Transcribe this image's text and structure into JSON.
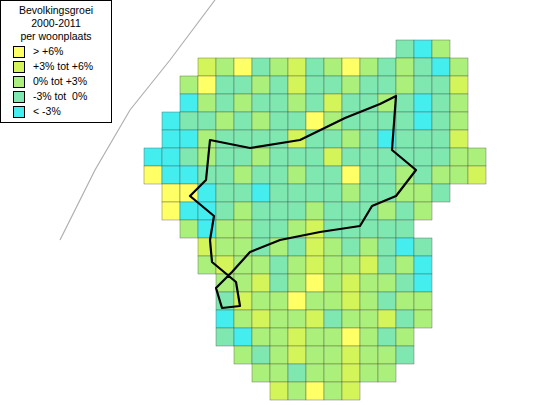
{
  "chart_data": {
    "type": "choropleth",
    "title": "Bevolkingsgroei 2000-2011",
    "subtitle": "per woonplaats",
    "legend": "top-left",
    "classes": [
      {
        "label": "> +6%",
        "color": "#ffff66"
      },
      {
        "label": "+3% tot +6%",
        "color": "#d4f55a"
      },
      {
        "label": "0% tot +3%",
        "color": "#aaf07a"
      },
      {
        "label": "-3% tot  0%",
        "color": "#7ee8b0"
      },
      {
        "label": "< -3%",
        "color": "#44eeee"
      }
    ],
    "cells": [
      [
        null,
        null,
        null,
        null,
        null,
        null,
        null,
        null,
        null,
        null,
        null,
        null,
        null,
        null,
        null,
        null,
        3,
        4,
        2,
        null,
        null,
        null
      ],
      [
        null,
        null,
        null,
        null,
        null,
        1,
        2,
        0,
        3,
        2,
        1,
        3,
        2,
        0,
        2,
        3,
        2,
        3,
        4,
        2,
        null,
        null
      ],
      [
        null,
        null,
        null,
        null,
        2,
        0,
        3,
        3,
        2,
        3,
        1,
        3,
        3,
        2,
        3,
        3,
        2,
        3,
        3,
        1,
        null,
        null
      ],
      [
        null,
        null,
        null,
        null,
        4,
        2,
        3,
        2,
        3,
        3,
        2,
        3,
        1,
        3,
        3,
        2,
        3,
        4,
        3,
        2,
        null,
        null
      ],
      [
        null,
        null,
        null,
        4,
        3,
        3,
        2,
        3,
        2,
        3,
        3,
        0,
        2,
        3,
        3,
        3,
        3,
        4,
        3,
        2,
        null,
        null
      ],
      [
        null,
        null,
        null,
        4,
        4,
        2,
        3,
        3,
        3,
        3,
        1,
        3,
        3,
        2,
        3,
        4,
        3,
        3,
        3,
        1,
        null,
        null
      ],
      [
        null,
        null,
        4,
        4,
        3,
        2,
        3,
        3,
        2,
        3,
        3,
        3,
        1,
        3,
        3,
        3,
        3,
        3,
        3,
        2,
        2,
        null
      ],
      [
        null,
        null,
        0,
        4,
        4,
        3,
        3,
        2,
        3,
        3,
        2,
        3,
        3,
        0,
        3,
        3,
        2,
        3,
        2,
        2,
        1,
        null
      ],
      [
        null,
        null,
        null,
        0,
        0,
        4,
        3,
        3,
        4,
        3,
        3,
        3,
        3,
        2,
        3,
        3,
        2,
        2,
        3,
        null,
        null,
        null
      ],
      [
        null,
        null,
        null,
        0,
        4,
        4,
        3,
        2,
        3,
        3,
        3,
        2,
        3,
        3,
        3,
        2,
        3,
        2,
        null,
        null,
        null,
        null
      ],
      [
        null,
        null,
        null,
        null,
        2,
        4,
        2,
        2,
        3,
        3,
        2,
        1,
        3,
        3,
        3,
        3,
        3,
        null,
        null,
        null,
        null,
        null
      ],
      [
        null,
        null,
        null,
        null,
        null,
        1,
        2,
        2,
        3,
        2,
        3,
        1,
        2,
        3,
        2,
        3,
        4,
        3,
        null,
        null,
        null,
        null
      ],
      [
        null,
        null,
        null,
        null,
        null,
        2,
        1,
        2,
        2,
        3,
        2,
        1,
        2,
        2,
        1,
        3,
        2,
        4,
        null,
        null,
        null,
        null
      ],
      [
        null,
        null,
        null,
        null,
        null,
        null,
        2,
        2,
        1,
        3,
        2,
        0,
        2,
        1,
        2,
        2,
        3,
        4,
        null,
        null,
        null,
        null
      ],
      [
        null,
        null,
        null,
        null,
        null,
        null,
        3,
        1,
        2,
        2,
        0,
        2,
        2,
        1,
        2,
        3,
        2,
        2,
        null,
        null,
        null,
        null
      ],
      [
        null,
        null,
        null,
        null,
        null,
        null,
        4,
        2,
        1,
        2,
        2,
        1,
        3,
        2,
        2,
        1,
        3,
        2,
        null,
        null,
        null,
        null
      ],
      [
        null,
        null,
        null,
        null,
        null,
        null,
        3,
        4,
        2,
        2,
        1,
        2,
        2,
        0,
        2,
        3,
        2,
        null,
        null,
        null,
        null,
        null
      ],
      [
        null,
        null,
        null,
        null,
        null,
        null,
        null,
        2,
        3,
        2,
        1,
        2,
        2,
        1,
        2,
        2,
        3,
        null,
        null,
        null,
        null,
        null
      ],
      [
        null,
        null,
        null,
        null,
        null,
        null,
        null,
        null,
        2,
        2,
        3,
        2,
        2,
        1,
        2,
        2,
        null,
        null,
        null,
        null,
        null,
        null
      ],
      [
        null,
        null,
        null,
        null,
        null,
        null,
        null,
        null,
        null,
        1,
        2,
        0,
        2,
        1,
        null,
        null,
        null,
        null,
        null,
        null,
        null,
        null
      ]
    ]
  }
}
